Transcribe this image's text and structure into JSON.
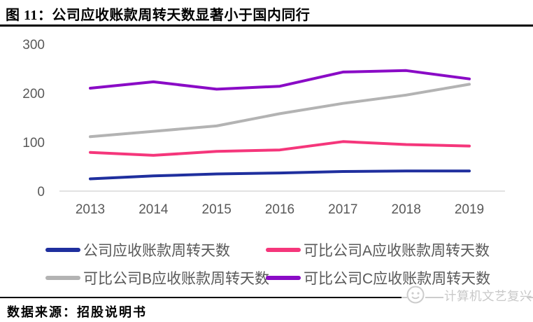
{
  "header": {
    "title": "图 11：公司应收账款周转天数显著小于国内同行"
  },
  "footer": {
    "source": "数据来源：招股说明书",
    "watermark": "计算机文艺复兴"
  },
  "chart_data": {
    "type": "line",
    "title": "公司应收账款周转天数显著小于国内同行",
    "x": [
      "2013",
      "2014",
      "2015",
      "2016",
      "2017",
      "2018",
      "2019"
    ],
    "series": [
      {
        "name": "公司应收账款周转天数",
        "color": "#1F2F9E",
        "values": [
          25,
          31,
          35,
          37,
          40,
          41,
          41
        ]
      },
      {
        "name": "可比公司A应收账款周转天数",
        "color": "#F5367B",
        "values": [
          79,
          73,
          81,
          84,
          101,
          95,
          92
        ]
      },
      {
        "name": "可比公司B应收账款周转天数",
        "color": "#B3B3B3",
        "values": [
          111,
          122,
          133,
          158,
          179,
          196,
          218
        ]
      },
      {
        "name": "可比公司C应收账款周转天数",
        "color": "#8A0BC6",
        "values": [
          210,
          223,
          208,
          214,
          243,
          246,
          229
        ]
      }
    ],
    "ylim": [
      0,
      300
    ],
    "yticks": [
      0,
      100,
      200,
      300
    ],
    "grid": false,
    "legend_position": "bottom",
    "axis_label_color": "#595959",
    "baseline_color": "#D9D9D9",
    "line_width": 4
  }
}
